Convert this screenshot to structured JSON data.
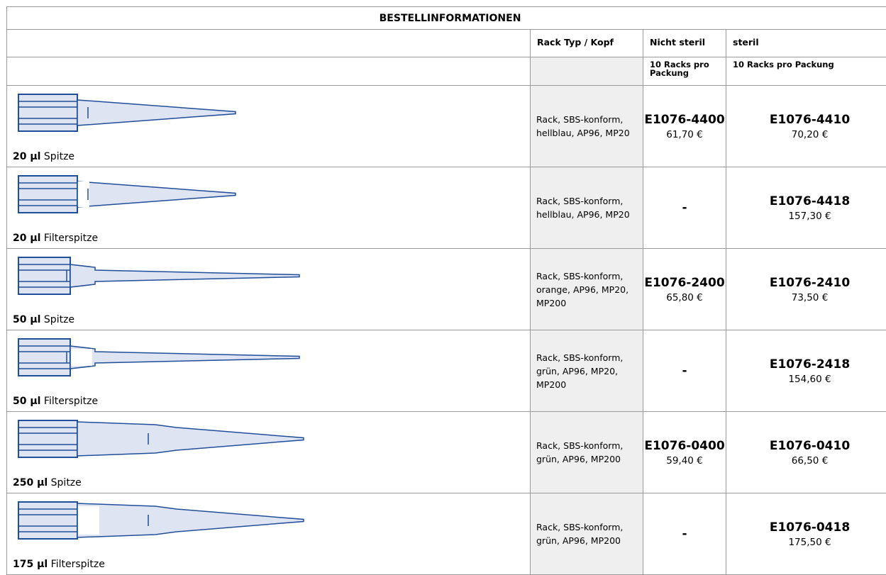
{
  "header": {
    "title": "BESTELLINFORMATIONEN"
  },
  "table": {
    "columns": [
      "Rack Typ / Kopf",
      "Nicht steril",
      "steril"
    ],
    "subheaders": [
      "10 Racks pro Packung",
      "10 Racks pro Packung"
    ],
    "rows": [
      {
        "volume": "20 µl",
        "name": "Spitze",
        "rack": "Rack, SBS-konform, hellblau, AP96, MP20",
        "nonsterile": {
          "code": "E1076-4400",
          "price": "61,70 €"
        },
        "sterile": {
          "code": "E1076-4410",
          "price": "70,20 €"
        }
      },
      {
        "volume": "20 µl",
        "name": "Filterspitze",
        "rack": "Rack, SBS-konform, hellblau, AP96, MP20",
        "nonsterile": {
          "code": "-"
        },
        "sterile": {
          "code": "E1076-4418",
          "price": "157,30 €"
        }
      },
      {
        "volume": "50 µl",
        "name": "Spitze",
        "rack": "Rack, SBS-konform, orange, AP96, MP20, MP200",
        "nonsterile": {
          "code": "E1076-2400",
          "price": "65,80 €"
        },
        "sterile": {
          "code": "E1076-2410",
          "price": "73,50 €"
        }
      },
      {
        "volume": "50 µl",
        "name": "Filterspitze",
        "rack": "Rack, SBS-konform, grün, AP96, MP20, MP200",
        "nonsterile": {
          "code": "-"
        },
        "sterile": {
          "code": "E1076-2418",
          "price": "154,60 €"
        }
      },
      {
        "volume": "250 µl",
        "name": "Spitze",
        "rack": "Rack, SBS-konform, grün, AP96, MP200",
        "nonsterile": {
          "code": "E1076-0400",
          "price": "59,40 €"
        },
        "sterile": {
          "code": "E1076-0410",
          "price": "66,50 €"
        }
      },
      {
        "volume": "175 µl",
        "name": "Filterspitze",
        "rack": "Rack, SBS-konform, grün, AP96, MP200",
        "nonsterile": {
          "code": "-"
        },
        "sterile": {
          "code": "E1076-0418",
          "price": "175,50 €"
        }
      }
    ]
  }
}
